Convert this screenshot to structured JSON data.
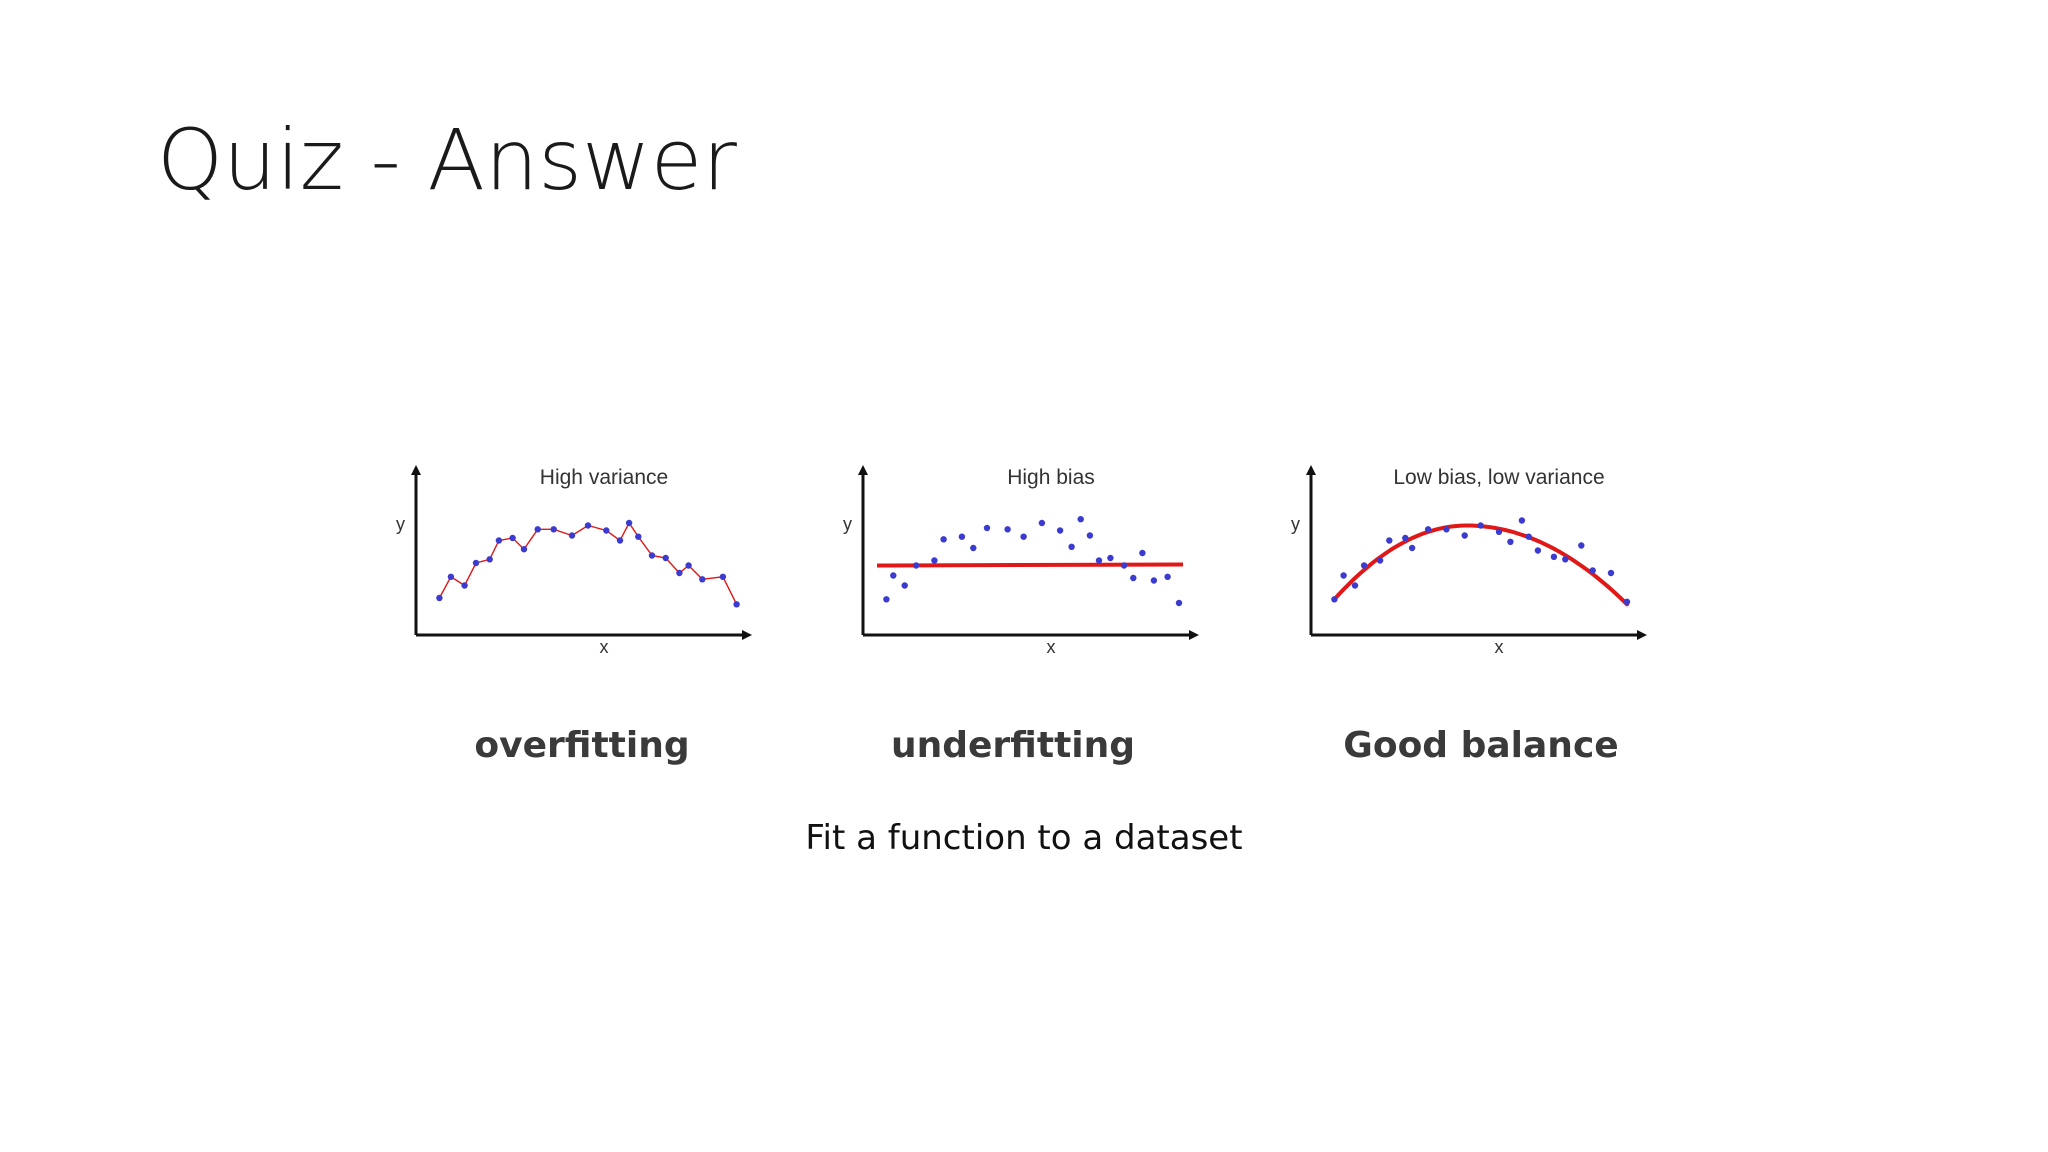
{
  "slide": {
    "title": "Quiz - Answer",
    "subcaption": "Fit a function to a dataset"
  },
  "colors": {
    "points": "#3b3bcf",
    "fit_line": "#e01818",
    "axis": "#111111"
  },
  "chart_data": [
    {
      "type": "scatter",
      "title": "High variance",
      "caption": "overfitting",
      "xlabel": "x",
      "ylabel": "y",
      "fit": "interpolating-polyline",
      "points": [
        [
          0.5,
          2.0
        ],
        [
          1.0,
          3.7
        ],
        [
          1.6,
          3.0
        ],
        [
          2.1,
          4.8
        ],
        [
          2.7,
          5.1
        ],
        [
          3.1,
          6.6
        ],
        [
          3.7,
          6.8
        ],
        [
          4.2,
          5.9
        ],
        [
          4.8,
          7.5
        ],
        [
          5.5,
          7.5
        ],
        [
          6.3,
          7.0
        ],
        [
          7.0,
          7.8
        ],
        [
          7.8,
          7.4
        ],
        [
          8.4,
          6.6
        ],
        [
          8.8,
          8.0
        ],
        [
          9.2,
          6.9
        ],
        [
          9.8,
          5.4
        ],
        [
          10.4,
          5.2
        ],
        [
          11.0,
          4.0
        ],
        [
          11.4,
          4.6
        ],
        [
          12.0,
          3.5
        ],
        [
          12.9,
          3.7
        ],
        [
          13.5,
          1.5
        ]
      ],
      "xlim": [
        0,
        14
      ],
      "ylim": [
        0,
        10
      ]
    },
    {
      "type": "scatter",
      "title": "High bias",
      "caption": "underfitting",
      "xlabel": "x",
      "ylabel": "y",
      "fit": "constant",
      "fit_value": 4.6,
      "points": [
        [
          0.5,
          1.9
        ],
        [
          0.8,
          3.8
        ],
        [
          1.3,
          3.0
        ],
        [
          1.8,
          4.6
        ],
        [
          2.6,
          5.0
        ],
        [
          3.0,
          6.7
        ],
        [
          3.8,
          6.9
        ],
        [
          4.3,
          6.0
        ],
        [
          4.9,
          7.6
        ],
        [
          5.8,
          7.5
        ],
        [
          6.5,
          6.9
        ],
        [
          7.3,
          8.0
        ],
        [
          8.1,
          7.4
        ],
        [
          8.6,
          6.1
        ],
        [
          9.0,
          8.3
        ],
        [
          9.4,
          7.0
        ],
        [
          9.8,
          5.0
        ],
        [
          10.3,
          5.2
        ],
        [
          10.9,
          4.6
        ],
        [
          11.3,
          3.6
        ],
        [
          11.7,
          5.6
        ],
        [
          12.2,
          3.4
        ],
        [
          12.8,
          3.7
        ],
        [
          13.3,
          1.6
        ]
      ],
      "xlim": [
        0,
        14
      ],
      "ylim": [
        0,
        10
      ]
    },
    {
      "type": "scatter",
      "title": "Low bias, low variance",
      "caption": "Good balance",
      "xlabel": "x",
      "ylabel": "y",
      "fit": "quadratic",
      "fit_peak_x": 6.3,
      "fit_peak_y": 7.8,
      "fit_endpoints_y": [
        1.9,
        1.5
      ],
      "points": [
        [
          0.5,
          1.9
        ],
        [
          0.9,
          3.8
        ],
        [
          1.4,
          3.0
        ],
        [
          1.8,
          4.6
        ],
        [
          2.5,
          5.0
        ],
        [
          2.9,
          6.6
        ],
        [
          3.6,
          6.8
        ],
        [
          3.9,
          6.0
        ],
        [
          4.6,
          7.5
        ],
        [
          5.4,
          7.5
        ],
        [
          6.2,
          7.0
        ],
        [
          6.9,
          7.8
        ],
        [
          7.7,
          7.3
        ],
        [
          8.2,
          6.5
        ],
        [
          8.7,
          8.2
        ],
        [
          9.0,
          6.9
        ],
        [
          9.4,
          5.8
        ],
        [
          10.1,
          5.3
        ],
        [
          10.6,
          5.1
        ],
        [
          11.3,
          6.2
        ],
        [
          11.8,
          4.2
        ],
        [
          12.6,
          4.0
        ],
        [
          13.3,
          1.7
        ]
      ],
      "xlim": [
        0,
        14
      ],
      "ylim": [
        0,
        10
      ]
    }
  ]
}
